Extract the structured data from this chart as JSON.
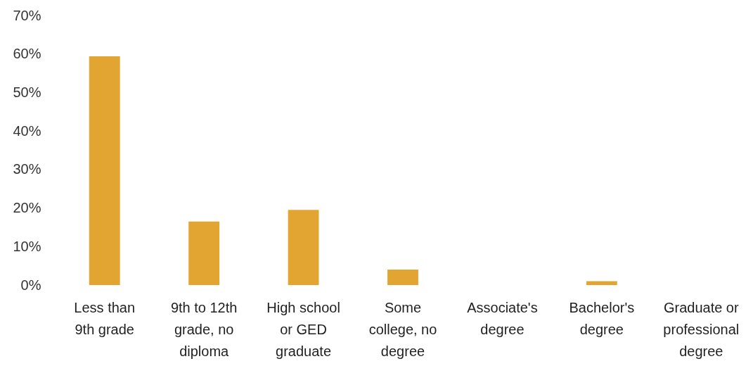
{
  "chart_data": {
    "type": "bar",
    "categories": [
      "Less than 9th grade",
      "9th to 12th grade, no diploma",
      "High school or GED graduate",
      "Some college, no degree",
      "Associate's degree",
      "Bachelor's degree",
      "Graduate or professional degree"
    ],
    "values": [
      59.4,
      16.5,
      19.5,
      4,
      0,
      1,
      0
    ],
    "color": "#e3a531",
    "ylim": [
      0,
      70
    ],
    "yticks": [
      {
        "value": 0,
        "label": "0%"
      },
      {
        "value": 10,
        "label": "10%"
      },
      {
        "value": 20,
        "label": "20%"
      },
      {
        "value": 30,
        "label": "30%"
      },
      {
        "value": 40,
        "label": "40%"
      },
      {
        "value": 50,
        "label": "50%"
      },
      {
        "value": 60,
        "label": "60%"
      },
      {
        "value": 70,
        "label": "70%"
      }
    ]
  }
}
